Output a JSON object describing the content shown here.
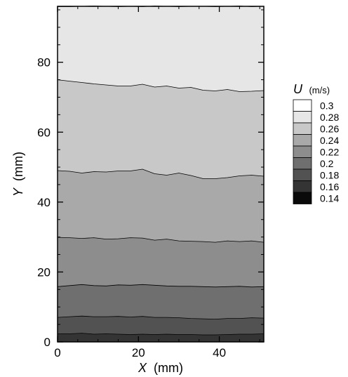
{
  "chart_data": {
    "type": "heatmap",
    "subtype": "filled-contour",
    "title": "",
    "xlabel_var": "X",
    "xlabel_unit": "(mm)",
    "ylabel_var": "Y",
    "ylabel_unit": "(mm)",
    "xlim": [
      0,
      51
    ],
    "ylim": [
      0,
      96
    ],
    "x_ticks": [
      0,
      20,
      40
    ],
    "y_ticks": [
      0,
      20,
      40,
      60,
      80
    ],
    "x_tick_labels": [
      "0",
      "20",
      "40"
    ],
    "y_tick_labels": [
      "0",
      "20",
      "40",
      "60",
      "80"
    ],
    "grid": false,
    "colorbar": {
      "variable": "U",
      "unit": "(m/s)",
      "levels": [
        0.3,
        0.28,
        0.26,
        0.24,
        0.22,
        0.2,
        0.18,
        0.16,
        0.14
      ],
      "level_labels": [
        "0.3",
        "0.28",
        "0.26",
        "0.24",
        "0.22",
        "0.2",
        "0.18",
        "0.16",
        "0.14"
      ],
      "colors": [
        "#ffffff",
        "#e6e6e6",
        "#c8c8c8",
        "#a9a9a9",
        "#8d8d8d",
        "#6f6f6f",
        "#525252",
        "#343434",
        "#0a0a0a"
      ],
      "placement": "right"
    },
    "contour_x": [
      0,
      3,
      6,
      9,
      12,
      15,
      18,
      21,
      24,
      27,
      30,
      33,
      36,
      39,
      42,
      45,
      48,
      51
    ],
    "contours": [
      {
        "level": 0.3,
        "y": [
          95.9,
          95.9,
          96.0,
          96.1,
          96.0,
          95.9,
          96.0,
          95.9,
          96.1,
          96.0,
          95.9,
          96.0,
          96.0,
          95.9,
          96.0,
          96.1,
          95.9,
          96.0
        ]
      },
      {
        "level": 0.28,
        "y": [
          75.0,
          74.6,
          74.2,
          73.8,
          73.5,
          73.2,
          73.2,
          73.7,
          72.9,
          73.2,
          72.6,
          72.8,
          72.0,
          71.8,
          72.2,
          71.6,
          71.7,
          71.9
        ]
      },
      {
        "level": 0.26,
        "y": [
          49.0,
          48.8,
          48.3,
          48.7,
          48.6,
          48.9,
          48.9,
          49.4,
          48.1,
          47.7,
          48.3,
          47.6,
          46.7,
          46.7,
          47.0,
          47.5,
          47.7,
          47.4
        ]
      },
      {
        "level": 0.24,
        "y": [
          29.9,
          29.8,
          29.6,
          29.8,
          29.4,
          29.5,
          29.8,
          29.7,
          29.1,
          29.4,
          28.9,
          28.8,
          28.7,
          28.5,
          28.9,
          28.7,
          28.9,
          28.5
        ]
      },
      {
        "level": 0.22,
        "y": [
          15.8,
          16.1,
          16.4,
          16.1,
          16.0,
          16.3,
          16.2,
          16.4,
          16.2,
          16.0,
          15.9,
          15.9,
          15.8,
          15.7,
          15.8,
          15.9,
          15.7,
          15.8
        ]
      },
      {
        "level": 0.2,
        "y": [
          7.0,
          7.2,
          7.4,
          7.2,
          7.2,
          7.3,
          7.1,
          7.3,
          7.0,
          7.0,
          6.9,
          6.7,
          6.6,
          6.5,
          6.7,
          6.7,
          6.9,
          6.8
        ]
      },
      {
        "level": 0.18,
        "y": [
          2.3,
          2.3,
          2.5,
          2.2,
          2.3,
          2.2,
          2.1,
          2.2,
          2.1,
          2.2,
          2.1,
          2.1,
          2.0,
          2.0,
          2.1,
          2.2,
          2.2,
          2.3
        ]
      }
    ]
  }
}
